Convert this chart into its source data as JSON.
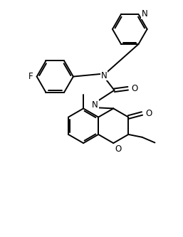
{
  "background": "#ffffff",
  "lc": "#000000",
  "lw": 1.4,
  "fs": 8.0,
  "figsize": [
    2.57,
    3.33
  ],
  "dpi": 100,
  "xlim": [
    0,
    10
  ],
  "ylim": [
    0,
    13
  ]
}
